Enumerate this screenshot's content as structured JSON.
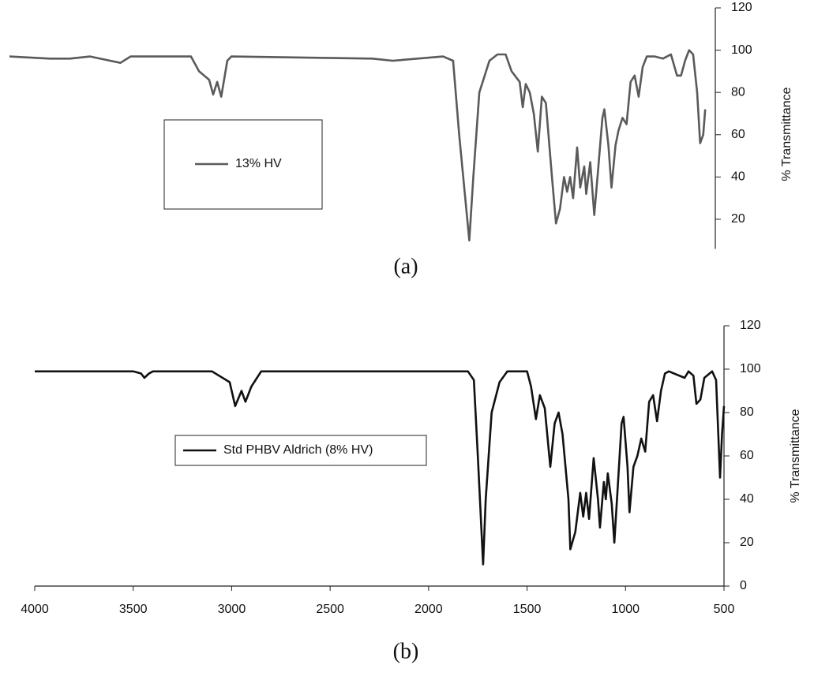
{
  "chart_data": [
    {
      "type": "line",
      "title": "(a)",
      "y_label": "% Transmittance",
      "x": [
        4000,
        3800,
        3700,
        3600,
        3500,
        3450,
        3400,
        3100,
        3060,
        3010,
        2990,
        2970,
        2950,
        2920,
        2900,
        2200,
        2100,
        1850,
        1800,
        1770,
        1720,
        1700,
        1670,
        1620,
        1580,
        1540,
        1510,
        1470,
        1455,
        1440,
        1420,
        1400,
        1380,
        1360,
        1340,
        1310,
        1290,
        1270,
        1250,
        1235,
        1220,
        1205,
        1185,
        1170,
        1150,
        1140,
        1120,
        1100,
        1080,
        1060,
        1050,
        1030,
        1015,
        995,
        980,
        960,
        940,
        920,
        900,
        880,
        860,
        840,
        800,
        760,
        720,
        690,
        670,
        650,
        630,
        610,
        590,
        575,
        560,
        550
      ],
      "series": [
        {
          "name": "13% HV",
          "color": "#5a5a5a",
          "values": [
            97,
            96,
            96,
            97,
            95,
            94,
            97,
            97,
            90,
            86,
            79,
            85,
            78,
            95,
            97,
            96,
            95,
            97,
            95,
            60,
            10,
            40,
            80,
            95,
            98,
            98,
            90,
            85,
            73,
            84,
            80,
            70,
            52,
            78,
            75,
            40,
            18,
            25,
            40,
            33,
            40,
            30,
            54,
            35,
            45,
            32,
            47,
            22,
            45,
            68,
            72,
            55,
            35,
            55,
            62,
            68,
            65,
            85,
            88,
            78,
            92,
            97,
            97,
            96,
            98,
            88,
            88,
            95,
            100,
            98,
            80,
            56,
            60,
            72
          ]
        }
      ],
      "xlim": [
        4000,
        500
      ],
      "ylim": [
        6,
        120
      ],
      "yticks": [
        20,
        40,
        60,
        80,
        100,
        120
      ]
    },
    {
      "type": "line",
      "title": "(b)",
      "y_label": "% Transmittance",
      "x": [
        4000,
        3500,
        3460,
        3443,
        3420,
        3400,
        3100,
        3010,
        2982,
        2950,
        2930,
        2900,
        2850,
        2000,
        1800,
        1770,
        1750,
        1723,
        1710,
        1680,
        1640,
        1600,
        1500,
        1480,
        1455,
        1435,
        1410,
        1382,
        1360,
        1340,
        1320,
        1290,
        1280,
        1255,
        1230,
        1215,
        1200,
        1185,
        1162,
        1140,
        1130,
        1110,
        1100,
        1090,
        1070,
        1057,
        1040,
        1020,
        1010,
        990,
        980,
        960,
        940,
        920,
        900,
        880,
        860,
        840,
        820,
        800,
        780,
        700,
        680,
        655,
        640,
        620,
        600,
        560,
        540,
        520,
        510,
        500
      ],
      "series": [
        {
          "name": "Std PHBV Aldrich (8% HV)",
          "color": "#111111",
          "values": [
            99,
            99,
            98,
            96,
            98,
            99,
            99,
            94,
            83,
            90,
            85,
            92,
            99,
            99,
            99,
            95,
            60,
            10,
            40,
            80,
            94,
            99,
            99,
            92,
            77,
            88,
            82,
            55,
            75,
            80,
            70,
            40,
            17,
            25,
            43,
            32,
            43,
            31,
            59,
            40,
            27,
            48,
            40,
            52,
            38,
            20,
            45,
            75,
            78,
            55,
            34,
            55,
            60,
            68,
            62,
            85,
            88,
            76,
            90,
            98,
            99,
            96,
            99,
            97,
            84,
            86,
            96,
            99,
            95,
            50,
            70,
            83
          ]
        }
      ],
      "xlim": [
        4000,
        500
      ],
      "ylim": [
        0,
        120
      ],
      "yticks": [
        0,
        20,
        40,
        60,
        80,
        100,
        120
      ],
      "xticks": [
        4000,
        3500,
        3000,
        2500,
        2000,
        1500,
        1000,
        500
      ]
    }
  ]
}
